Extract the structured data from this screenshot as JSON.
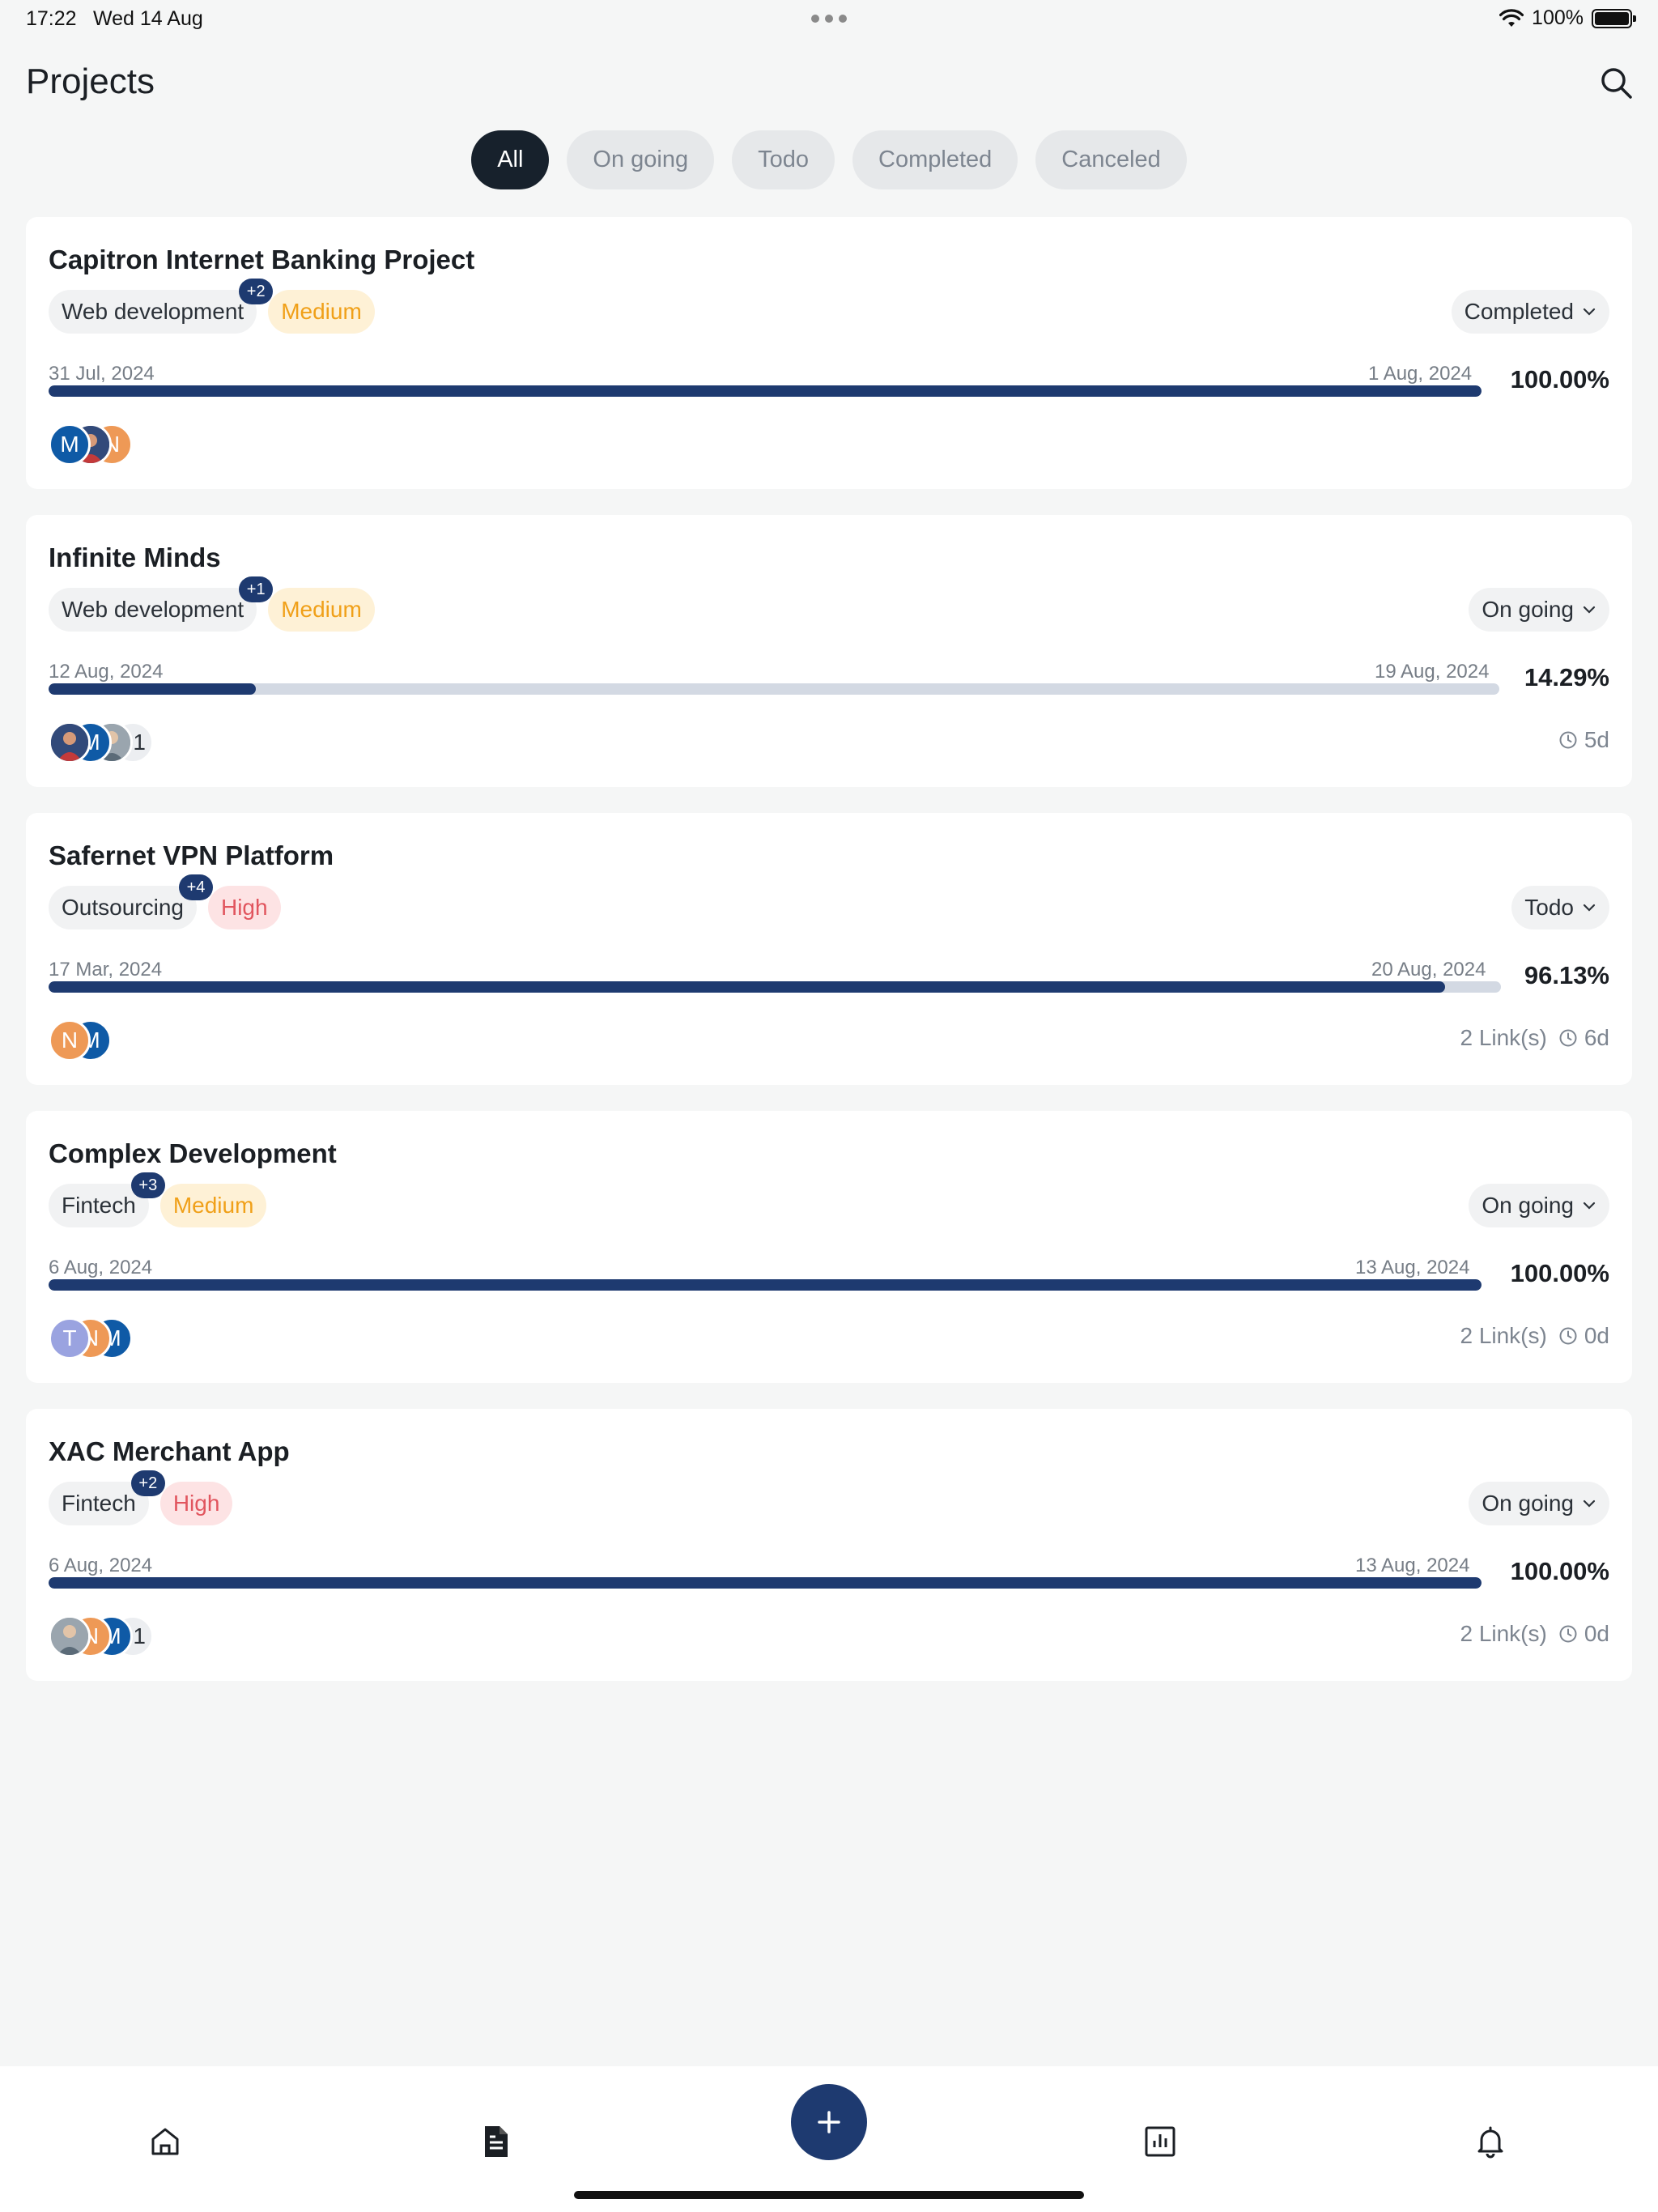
{
  "status_bar": {
    "time": "17:22",
    "date": "Wed 14 Aug",
    "battery": "100%"
  },
  "header": {
    "title": "Projects"
  },
  "tabs": [
    {
      "label": "All",
      "active": true
    },
    {
      "label": "On going",
      "active": false
    },
    {
      "label": "Todo",
      "active": false
    },
    {
      "label": "Completed",
      "active": false
    },
    {
      "label": "Canceled",
      "active": false
    }
  ],
  "projects": [
    {
      "title": "Capitron Internet Banking Project",
      "category": "Web development",
      "extra_categories": "+2",
      "priority": "Medium",
      "status": "Completed",
      "start_date": "31 Jul, 2024",
      "end_date": "1 Aug, 2024",
      "progress": 100.0,
      "progress_label": "100.00%",
      "members": [
        "M",
        "",
        "N"
      ],
      "extra_members": "",
      "links": "",
      "countdown": ""
    },
    {
      "title": "Infinite Minds",
      "category": "Web development",
      "extra_categories": "+1",
      "priority": "Medium",
      "status": "On going",
      "start_date": "12 Aug, 2024",
      "end_date": "19 Aug, 2024",
      "progress": 14.29,
      "progress_label": "14.29%",
      "members": [
        "",
        "M",
        ""
      ],
      "extra_members": "+1",
      "links": "",
      "countdown": "5d"
    },
    {
      "title": "Safernet VPN Platform",
      "category": "Outsourcing",
      "extra_categories": "+4",
      "priority": "High",
      "status": "Todo",
      "start_date": "17 Mar, 2024",
      "end_date": "20 Aug, 2024",
      "progress": 96.13,
      "progress_label": "96.13%",
      "members": [
        "N",
        "M"
      ],
      "extra_members": "",
      "links": "2 Link(s)",
      "countdown": "6d"
    },
    {
      "title": "Complex Development",
      "category": "Fintech",
      "extra_categories": "+3",
      "priority": "Medium",
      "status": "On going",
      "start_date": "6 Aug, 2024",
      "end_date": "13 Aug, 2024",
      "progress": 100.0,
      "progress_label": "100.00%",
      "members": [
        "T",
        "N",
        "M"
      ],
      "extra_members": "",
      "links": "2 Link(s)",
      "countdown": "0d"
    },
    {
      "title": "XAC Merchant App",
      "category": "Fintech",
      "extra_categories": "+2",
      "priority": "High",
      "status": "On going",
      "start_date": "6 Aug, 2024",
      "end_date": "13 Aug, 2024",
      "progress": 100.0,
      "progress_label": "100.00%",
      "members": [
        "",
        "N",
        "M"
      ],
      "extra_members": "+1",
      "links": "2 Link(s)",
      "countdown": "0d"
    }
  ],
  "bottom_nav": {
    "items": [
      "home-icon",
      "document-icon",
      "add-icon",
      "chart-icon",
      "bell-icon"
    ],
    "active": "document-icon"
  },
  "colors": {
    "accent": "#1e3a70",
    "medium": "#f0a019",
    "high": "#e1555e",
    "avatar_blue": "#0f5aa6",
    "avatar_orange": "#ee9956",
    "avatar_lavender": "#9aa3e0"
  }
}
